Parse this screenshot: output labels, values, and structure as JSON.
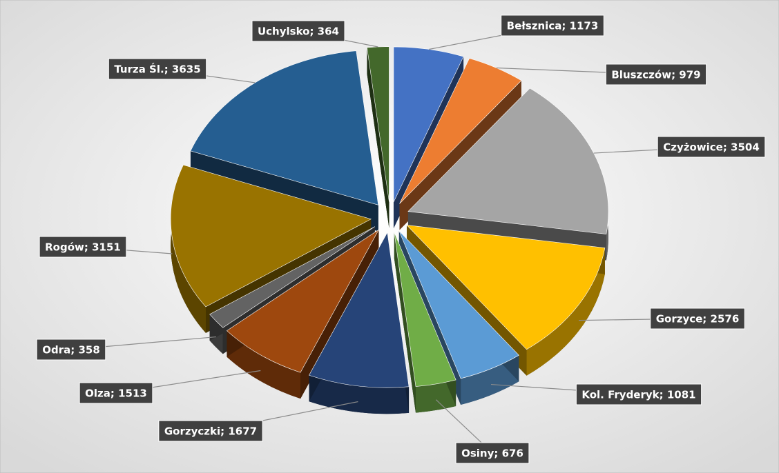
{
  "chart_data": {
    "type": "pie3d",
    "values": [
      1173,
      979,
      3504,
      2576,
      1081,
      676,
      1677,
      1513,
      358,
      3151,
      3635,
      364
    ],
    "value_labels": [
      "Bełsznica; 1173",
      "Bluszczów; 979",
      "Czyżowice; 3504",
      "Gorzyce; 2576",
      "Kol. Fryderyk; 1081",
      "Osiny; 676",
      "Gorzyczki; 1677",
      "Olza; 1513",
      "Odra; 358",
      "Rogów; 3151",
      "Turza Śl.; 3635",
      "Uchylsko; 364"
    ],
    "colors": [
      "#4472c4",
      "#ed7d31",
      "#a5a5a5",
      "#ffc000",
      "#5b9bd5",
      "#70ad47",
      "#264478",
      "#9e480e",
      "#636363",
      "#997300",
      "#255e91",
      "#43682b"
    ]
  }
}
